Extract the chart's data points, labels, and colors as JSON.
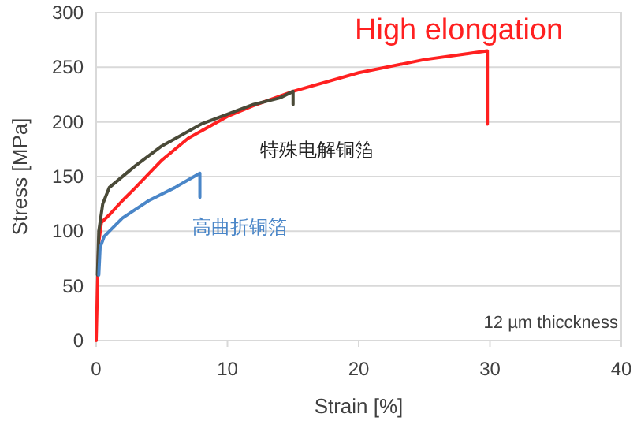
{
  "chart_data": {
    "type": "line",
    "xlabel": "Strain [%]",
    "ylabel": "Stress [MPa]",
    "xlim": [
      0,
      40
    ],
    "ylim": [
      0,
      300
    ],
    "xticks": [
      0,
      10,
      20,
      30,
      40
    ],
    "yticks": [
      0,
      50,
      100,
      150,
      200,
      250,
      300
    ],
    "grid": "y",
    "marker": "none",
    "line_style": "solid",
    "series": [
      {
        "name": "High elongation",
        "color": "#ff2020",
        "x": [
          0,
          0.1,
          0.2,
          0.4,
          1,
          2,
          3,
          5,
          7,
          10,
          12,
          15,
          20,
          25,
          28,
          29.8,
          29.8
        ],
        "values": [
          0,
          50,
          90,
          108,
          115,
          128,
          140,
          165,
          185,
          205,
          215,
          228,
          245,
          257,
          262,
          265,
          198
        ]
      },
      {
        "name": "特殊电解铜箔",
        "color": "#4a4a38",
        "x": [
          0.1,
          0.2,
          0.5,
          1,
          3,
          5,
          8,
          10,
          12,
          14,
          15,
          15
        ],
        "values": [
          60,
          100,
          125,
          140,
          160,
          178,
          198,
          207,
          216,
          222,
          228,
          216
        ]
      },
      {
        "name": "高曲折铜箔",
        "color": "#4a86c8",
        "x": [
          0.2,
          0.3,
          0.6,
          1,
          2,
          4,
          6,
          7,
          7.9,
          7.9
        ],
        "values": [
          60,
          85,
          95,
          100,
          112,
          128,
          140,
          147,
          153,
          131
        ]
      }
    ],
    "annotations": [
      "12 µm thicckness"
    ]
  }
}
